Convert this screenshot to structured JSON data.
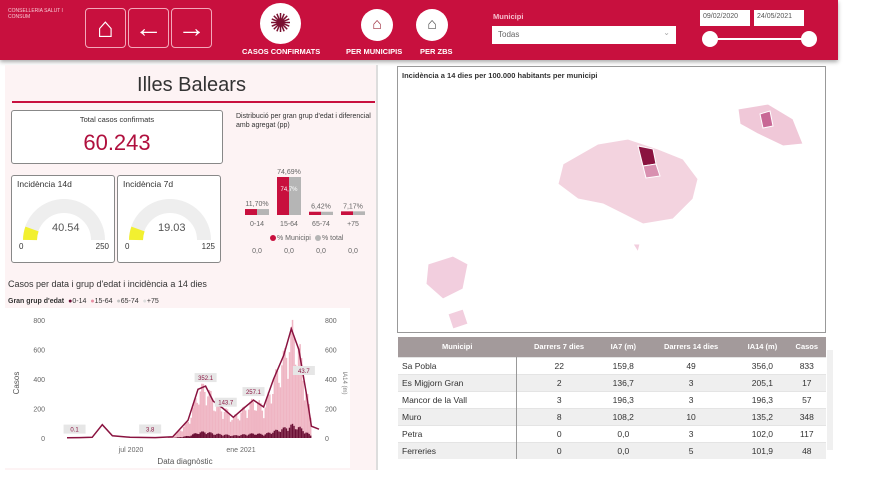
{
  "header": {
    "logo_text": "CONSELLERIA SALUT I CONSUM",
    "nav": {
      "home": "home",
      "back": "back",
      "forward": "forward"
    },
    "buttons": [
      {
        "label": "CASOS CONFIRMATS",
        "icon": "virus-icon"
      },
      {
        "label": "PER MUNICIPIS",
        "icon": "town-icon"
      },
      {
        "label": "PER ZBS",
        "icon": "hospital-icon"
      }
    ],
    "municipi_label": "Municipi",
    "municipi_value": "Todas",
    "date_start": "09/02/2020",
    "date_end": "24/05/2021"
  },
  "left": {
    "title": "Illes Balears",
    "total_label": "Total casos confirmats",
    "total_value": "60.243",
    "gauges": [
      {
        "label": "Incidència 14d",
        "value": "40.54",
        "min": "0",
        "max": "250",
        "fraction": 0.162
      },
      {
        "label": "Incidència 7d",
        "value": "19.03",
        "min": "0",
        "max": "125",
        "fraction": 0.152
      }
    ],
    "gauge_color": "#f2f030",
    "distribution": {
      "title": "Distribució per gran grup d'edat i diferencial amb agregat (pp)",
      "groups": [
        {
          "label": "0-14",
          "municipi": 11.7,
          "total": 11.7,
          "label_top": "11,70%",
          "diff": "0,0"
        },
        {
          "label": "15-64",
          "municipi": 74.69,
          "total": 74.7,
          "label_top": "74,69%",
          "label_inner": "74,7%",
          "diff": "0,0"
        },
        {
          "label": "65-74",
          "municipi": 6.42,
          "total": 6.4,
          "label_top": "6,42%",
          "diff": "0,0"
        },
        {
          "label": "+75",
          "municipi": 7.17,
          "total": 7.2,
          "label_top": "7,17%",
          "diff": "0,0"
        }
      ],
      "legend": [
        "% Municipi",
        "% total"
      ],
      "colors": [
        "#c8103e",
        "#b5b5b5"
      ]
    }
  },
  "chart_data": {
    "type": "line",
    "title": "Casos per data i grup d'edat i incidència a 14 dies",
    "legend_title": "Gran grup d'edat",
    "legend": [
      {
        "name": "0-14",
        "color": "#6b1035"
      },
      {
        "name": "15-64",
        "color": "#e88fa3"
      },
      {
        "name": "65-74",
        "color": "#c0c0c0"
      },
      {
        "name": "+75",
        "color": "#eeeeee"
      }
    ],
    "xlabel": "Data diagnòstic",
    "ylabel": "Casos",
    "y2label": "IA14 (m)",
    "ylim": [
      0,
      800
    ],
    "y2lim": [
      0,
      800
    ],
    "yticks": [
      "0",
      "200",
      "400",
      "600",
      "800"
    ],
    "xticks": [
      "jul 2020",
      "ene 2021"
    ],
    "ia14": [
      [
        0,
        2
      ],
      [
        0.05,
        3
      ],
      [
        0.1,
        5
      ],
      [
        0.14,
        90
      ],
      [
        0.18,
        15
      ],
      [
        0.25,
        5
      ],
      [
        0.35,
        3
      ],
      [
        0.42,
        8
      ],
      [
        0.48,
        120
      ],
      [
        0.52,
        330
      ],
      [
        0.55,
        352
      ],
      [
        0.58,
        250
      ],
      [
        0.62,
        200
      ],
      [
        0.66,
        140
      ],
      [
        0.7,
        200
      ],
      [
        0.74,
        257
      ],
      [
        0.78,
        210
      ],
      [
        0.82,
        400
      ],
      [
        0.86,
        560
      ],
      [
        0.89,
        740
      ],
      [
        0.92,
        600
      ],
      [
        0.95,
        300
      ],
      [
        0.97,
        80
      ],
      [
        1.0,
        60
      ]
    ],
    "data_labels": [
      {
        "t": 0.03,
        "v": "0.1"
      },
      {
        "t": 0.33,
        "v": "3.8"
      },
      {
        "t": 0.55,
        "v": "352.1"
      },
      {
        "t": 0.63,
        "v": "143.7"
      },
      {
        "t": 0.74,
        "v": "257.1"
      },
      {
        "t": 0.94,
        "v": "43.7"
      }
    ]
  },
  "map": {
    "title": "Incidència a 14 dies per 100.000 habitants per municipi"
  },
  "table": {
    "columns": [
      "Municipi",
      "Darrers 7 dies",
      "IA7 (m)",
      "Darrers 14 dies",
      "IA14 (m)",
      "Casos"
    ],
    "rows": [
      [
        "Sa Pobla",
        "22",
        "159,8",
        "49",
        "356,0",
        "833"
      ],
      [
        "Es Migjorn Gran",
        "2",
        "136,7",
        "3",
        "205,1",
        "17"
      ],
      [
        "Mancor de la Vall",
        "3",
        "196,3",
        "3",
        "196,3",
        "57"
      ],
      [
        "Muro",
        "8",
        "108,2",
        "10",
        "135,2",
        "348"
      ],
      [
        "Petra",
        "0",
        "0,0",
        "3",
        "102,0",
        "117"
      ],
      [
        "Ferreries",
        "0",
        "0,0",
        "5",
        "101,9",
        "48"
      ]
    ]
  },
  "colors": {
    "brand": "#c8103e"
  }
}
